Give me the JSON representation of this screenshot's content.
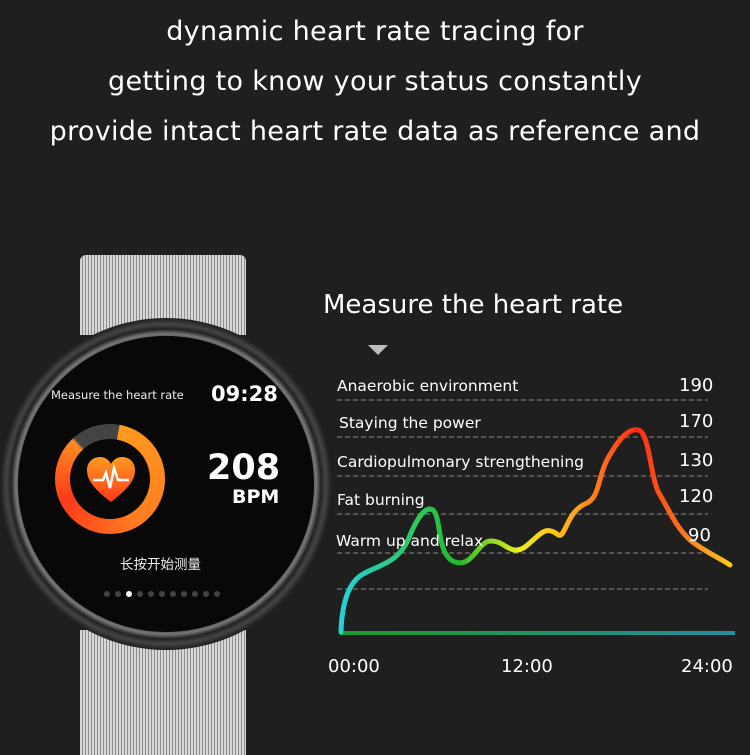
{
  "headline": [
    "dynamic heart rate tracing for",
    "getting to know your status constantly",
    "provide intact heart rate data as reference and"
  ],
  "watch": {
    "title": "Measure the heart rate",
    "time": "09:28",
    "bpm": "208",
    "bpm_unit": "BPM",
    "hint": "长按开始测量",
    "page_count": 11,
    "active_page": 3
  },
  "chart": {
    "title": "Measure the heart rate",
    "zones": [
      {
        "label": "Anaerobic environment",
        "value": "190"
      },
      {
        "label": "Staying the power",
        "value": "170"
      },
      {
        "label": "Cardiopulmonary strengthening",
        "value": "130"
      },
      {
        "label": "Fat burning",
        "value": "120"
      },
      {
        "label": "Warm up and relax",
        "value": "90"
      }
    ],
    "x_ticks": [
      "00:00",
      "12:00",
      "24:00"
    ]
  },
  "colors": {
    "background": "#1f1f1f",
    "ring": "#ff7a1f",
    "curve_start": "#22d3d8",
    "curve_peak": "#ff2a14"
  }
}
